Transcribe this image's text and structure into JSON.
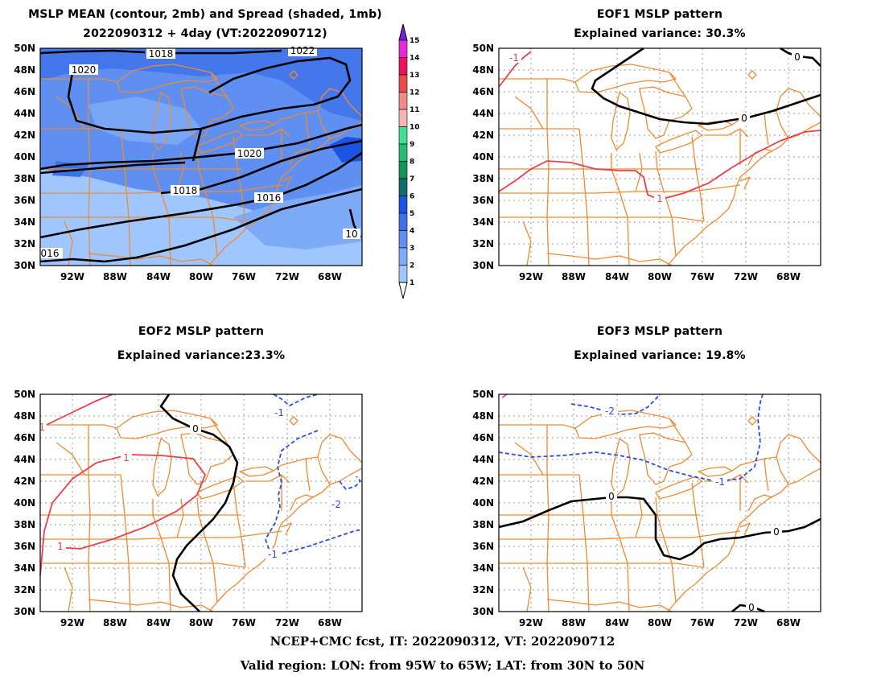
{
  "panels": [
    {
      "id": "mean",
      "title1": "MSLP MEAN (contour, 2mb) and Spread (shaded, 1mb)",
      "title2": "2022090312 + 4day (VT:2022090712)",
      "contour_labels": [
        "1018",
        "1022",
        "1020",
        "1020",
        "1018",
        "1016",
        "10",
        "016"
      ]
    },
    {
      "id": "eof1",
      "title1": "EOF1 MSLP pattern",
      "title2": "Explained variance: 30.3%",
      "contour_labels": [
        "-1",
        "0",
        "0",
        "1"
      ]
    },
    {
      "id": "eof2",
      "title1": "EOF2 MSLP pattern",
      "title2": "Explained variance:23.3%",
      "contour_labels": [
        "1",
        "0",
        "-1",
        "1",
        "-1",
        "-2",
        "1"
      ]
    },
    {
      "id": "eof3",
      "title1": "EOF3 MSLP pattern",
      "title2": "Explained variance: 19.8%",
      "contour_labels": [
        "-2",
        "-1",
        "0",
        "0",
        "0"
      ]
    }
  ],
  "axes": {
    "lat_labels": [
      "50N",
      "48N",
      "46N",
      "44N",
      "42N",
      "40N",
      "38N",
      "36N",
      "34N",
      "32N",
      "30N"
    ],
    "lon_labels": [
      "92W",
      "88W",
      "84W",
      "80W",
      "76W",
      "72W",
      "68W"
    ]
  },
  "colorbar": {
    "labels": [
      "1",
      "2",
      "3",
      "4",
      "5",
      "6",
      "7",
      "8",
      "9",
      "10",
      "11",
      "12",
      "13",
      "14",
      "15"
    ],
    "colors": [
      "#9fc6ff",
      "#7eabf7",
      "#5f8ff0",
      "#3d71ea",
      "#1b54e2",
      "#0f6e6a",
      "#117a50",
      "#14935a",
      "#2ab873",
      "#45dd90",
      "#f5b5b5",
      "#ef8b8b",
      "#e94c4c",
      "#e6175c",
      "#e22ad8",
      "#7a1ee0"
    ]
  },
  "footer": {
    "line1": "NCEP+CMC fcst, IT: 2022090312, VT: 2022090712",
    "line2": "Valid region: LON: from 95W to 65W; LAT: from 30N to 50N"
  },
  "colors": {
    "map_lines": "#f08a30",
    "contour_black": "#000000",
    "contour_red": "#e8404a",
    "contour_blue": "#2a4ee0",
    "grid": "#9a9a9a"
  }
}
